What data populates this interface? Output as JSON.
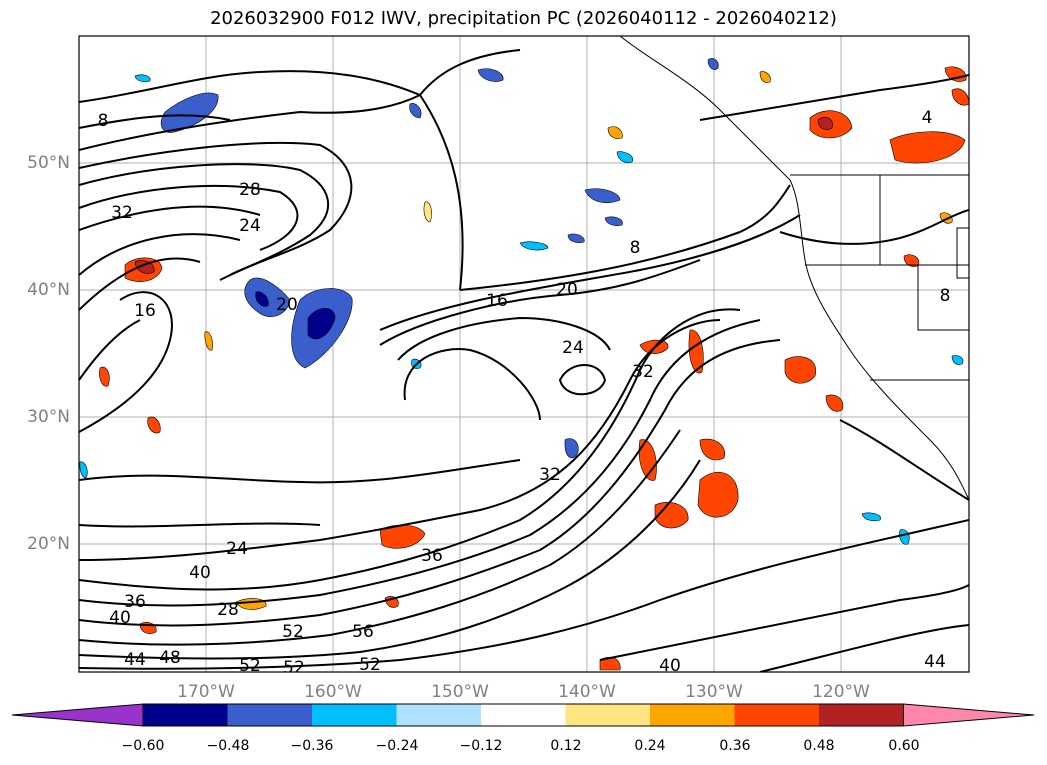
{
  "chart_data": {
    "type": "map",
    "title": "2026032900 F012 IWV, precipitation PC (2026040112 - 2026040212)",
    "x_ticks": [
      "170°W",
      "160°W",
      "150°W",
      "140°W",
      "130°W",
      "120°W"
    ],
    "y_ticks": [
      "20°N",
      "30°N",
      "40°N",
      "50°N"
    ],
    "contour_labels": [
      "8",
      "28",
      "32",
      "24",
      "16",
      "20",
      "16",
      "20",
      "24",
      "32",
      "32",
      "8",
      "4",
      "8",
      "36",
      "40",
      "24",
      "36",
      "40",
      "28",
      "44",
      "48",
      "52",
      "52",
      "52",
      "56",
      "52",
      "40",
      "44"
    ],
    "colorbar": {
      "ticks": [
        "−0.60",
        "−0.48",
        "−0.36",
        "−0.24",
        "−0.12",
        "0.12",
        "0.24",
        "0.36",
        "0.48",
        "0.60"
      ],
      "colors": [
        "#9933cc",
        "#00008b",
        "#3a5fcd",
        "#00bfff",
        "#b0e2ff",
        "#ffffff",
        "#ffe680",
        "#ffa500",
        "#ff4500",
        "#b22222",
        "#ff88aa"
      ]
    }
  }
}
